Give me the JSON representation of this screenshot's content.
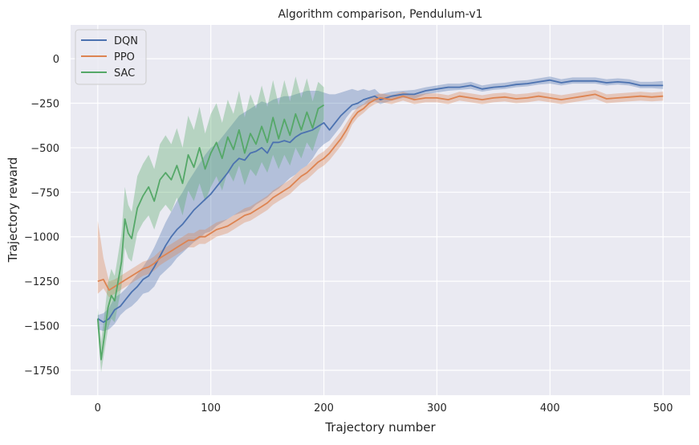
{
  "chart_data": {
    "type": "line",
    "title": "Algorithm comparison, Pendulum-v1",
    "xlabel": "Trajectory number",
    "ylabel": "Trajectory reward",
    "xlim": [
      -24,
      524
    ],
    "ylim": [
      -1890,
      190
    ],
    "xticks": [
      0,
      100,
      200,
      300,
      400,
      500
    ],
    "yticks": [
      0,
      -250,
      -500,
      -750,
      -1000,
      -1250,
      -1500,
      -1750
    ],
    "grid": true,
    "legend_position": "top-left",
    "background": "#eaeaf2",
    "series": [
      {
        "name": "DQN",
        "color": "#4c72b0",
        "band_color": "#4c72b0",
        "x": [
          0,
          5,
          10,
          15,
          20,
          25,
          30,
          35,
          40,
          45,
          50,
          55,
          60,
          65,
          70,
          75,
          80,
          85,
          90,
          95,
          100,
          105,
          110,
          115,
          120,
          125,
          130,
          135,
          140,
          145,
          150,
          155,
          160,
          165,
          170,
          175,
          180,
          185,
          190,
          195,
          200,
          205,
          210,
          215,
          220,
          225,
          230,
          235,
          240,
          245,
          250,
          260,
          270,
          280,
          290,
          300,
          310,
          320,
          330,
          340,
          350,
          360,
          370,
          380,
          390,
          400,
          410,
          420,
          430,
          440,
          450,
          460,
          470,
          480,
          490,
          500
        ],
        "y": [
          -1460,
          -1480,
          -1460,
          -1410,
          -1390,
          -1350,
          -1310,
          -1280,
          -1240,
          -1220,
          -1170,
          -1110,
          -1050,
          -1000,
          -960,
          -930,
          -890,
          -850,
          -820,
          -790,
          -760,
          -720,
          -680,
          -640,
          -590,
          -560,
          -570,
          -530,
          -520,
          -500,
          -530,
          -470,
          -470,
          -460,
          -470,
          -440,
          -420,
          -410,
          -400,
          -380,
          -360,
          -400,
          -360,
          -320,
          -290,
          -260,
          -250,
          -230,
          -220,
          -210,
          -230,
          -210,
          -200,
          -200,
          -180,
          -170,
          -160,
          -160,
          -150,
          -170,
          -160,
          -155,
          -145,
          -140,
          -130,
          -120,
          -135,
          -125,
          -125,
          -125,
          -135,
          -130,
          -135,
          -150,
          -150,
          -150
        ],
        "lower": [
          -1520,
          -1530,
          -1520,
          -1490,
          -1440,
          -1410,
          -1390,
          -1360,
          -1320,
          -1310,
          -1280,
          -1220,
          -1190,
          -1160,
          -1120,
          -1090,
          -1060,
          -1030,
          -1010,
          -980,
          -970,
          -940,
          -920,
          -900,
          -880,
          -870,
          -860,
          -850,
          -820,
          -800,
          -780,
          -750,
          -730,
          -700,
          -670,
          -650,
          -620,
          -600,
          -560,
          -510,
          -480,
          -460,
          -420,
          -380,
          -330,
          -290,
          -280,
          -260,
          -250,
          -240,
          -255,
          -235,
          -220,
          -225,
          -200,
          -190,
          -180,
          -175,
          -170,
          -185,
          -175,
          -170,
          -160,
          -155,
          -145,
          -140,
          -150,
          -140,
          -140,
          -140,
          -150,
          -145,
          -150,
          -165,
          -165,
          -170
        ],
        "upper": [
          -1440,
          -1430,
          -1400,
          -1340,
          -1320,
          -1290,
          -1250,
          -1210,
          -1170,
          -1120,
          -1060,
          -990,
          -920,
          -860,
          -800,
          -750,
          -690,
          -640,
          -590,
          -540,
          -500,
          -480,
          -440,
          -400,
          -360,
          -320,
          -300,
          -280,
          -260,
          -240,
          -250,
          -230,
          -220,
          -210,
          -210,
          -200,
          -190,
          -180,
          -180,
          -180,
          -190,
          -200,
          -200,
          -190,
          -180,
          -170,
          -180,
          -170,
          -180,
          -170,
          -200,
          -185,
          -180,
          -175,
          -160,
          -150,
          -140,
          -140,
          -130,
          -150,
          -140,
          -135,
          -125,
          -120,
          -110,
          -100,
          -115,
          -105,
          -105,
          -105,
          -115,
          -110,
          -115,
          -130,
          -130,
          -125
        ]
      },
      {
        "name": "PPO",
        "color": "#dd8452",
        "band_color": "#dd8452",
        "x": [
          0,
          5,
          10,
          15,
          20,
          25,
          30,
          35,
          40,
          45,
          50,
          55,
          60,
          65,
          70,
          75,
          80,
          85,
          90,
          95,
          100,
          105,
          110,
          115,
          120,
          125,
          130,
          135,
          140,
          145,
          150,
          155,
          160,
          165,
          170,
          175,
          180,
          185,
          190,
          195,
          200,
          205,
          210,
          215,
          220,
          225,
          230,
          235,
          240,
          245,
          250,
          260,
          270,
          280,
          290,
          300,
          310,
          320,
          330,
          340,
          350,
          360,
          370,
          380,
          390,
          400,
          410,
          420,
          430,
          440,
          450,
          460,
          470,
          480,
          490,
          500
        ],
        "y": [
          -1250,
          -1240,
          -1300,
          -1280,
          -1260,
          -1240,
          -1220,
          -1200,
          -1180,
          -1170,
          -1150,
          -1120,
          -1100,
          -1080,
          -1060,
          -1040,
          -1020,
          -1020,
          -1000,
          -1000,
          -980,
          -960,
          -950,
          -940,
          -920,
          -900,
          -880,
          -870,
          -850,
          -830,
          -810,
          -780,
          -760,
          -740,
          -720,
          -690,
          -660,
          -640,
          -610,
          -580,
          -560,
          -530,
          -490,
          -450,
          -400,
          -340,
          -300,
          -280,
          -250,
          -230,
          -220,
          -230,
          -210,
          -230,
          -220,
          -220,
          -230,
          -210,
          -220,
          -230,
          -220,
          -215,
          -225,
          -220,
          -210,
          -220,
          -230,
          -220,
          -210,
          -200,
          -225,
          -220,
          -215,
          -210,
          -215,
          -210
        ],
        "lower": [
          -1320,
          -1290,
          -1340,
          -1320,
          -1300,
          -1280,
          -1260,
          -1240,
          -1220,
          -1210,
          -1190,
          -1160,
          -1140,
          -1120,
          -1100,
          -1080,
          -1060,
          -1060,
          -1040,
          -1040,
          -1020,
          -1000,
          -990,
          -980,
          -960,
          -940,
          -920,
          -910,
          -890,
          -870,
          -850,
          -820,
          -800,
          -780,
          -760,
          -730,
          -700,
          -680,
          -650,
          -620,
          -600,
          -570,
          -530,
          -490,
          -440,
          -370,
          -330,
          -305,
          -275,
          -255,
          -245,
          -255,
          -235,
          -255,
          -245,
          -245,
          -255,
          -235,
          -245,
          -255,
          -245,
          -240,
          -250,
          -245,
          -235,
          -245,
          -255,
          -245,
          -235,
          -225,
          -250,
          -245,
          -240,
          -235,
          -240,
          -235
        ],
        "upper": [
          -910,
          -1120,
          -1250,
          -1240,
          -1220,
          -1200,
          -1180,
          -1160,
          -1140,
          -1130,
          -1110,
          -1080,
          -1060,
          -1040,
          -1020,
          -1000,
          -980,
          -980,
          -960,
          -960,
          -940,
          -920,
          -910,
          -900,
          -880,
          -860,
          -840,
          -830,
          -810,
          -790,
          -770,
          -740,
          -720,
          -700,
          -680,
          -650,
          -620,
          -600,
          -570,
          -540,
          -520,
          -490,
          -450,
          -410,
          -360,
          -310,
          -270,
          -255,
          -225,
          -205,
          -195,
          -205,
          -185,
          -205,
          -195,
          -195,
          -205,
          -185,
          -195,
          -205,
          -195,
          -190,
          -200,
          -195,
          -185,
          -195,
          -205,
          -195,
          -185,
          -175,
          -200,
          -195,
          -190,
          -185,
          -190,
          -185
        ]
      },
      {
        "name": "SAC",
        "color": "#55a868",
        "band_color": "#55a868",
        "x": [
          0,
          3,
          6,
          9,
          12,
          15,
          18,
          21,
          24,
          27,
          30,
          35,
          40,
          45,
          50,
          55,
          60,
          65,
          70,
          75,
          80,
          85,
          90,
          95,
          100,
          105,
          110,
          115,
          120,
          125,
          130,
          135,
          140,
          145,
          150,
          155,
          160,
          165,
          170,
          175,
          180,
          185,
          190,
          195,
          200
        ],
        "y": [
          -1460,
          -1690,
          -1550,
          -1400,
          -1330,
          -1360,
          -1250,
          -1140,
          -900,
          -980,
          -1010,
          -840,
          -770,
          -720,
          -800,
          -680,
          -640,
          -680,
          -600,
          -700,
          -540,
          -610,
          -500,
          -620,
          -530,
          -470,
          -560,
          -440,
          -510,
          -400,
          -530,
          -420,
          -480,
          -380,
          -470,
          -330,
          -450,
          -340,
          -430,
          -310,
          -400,
          -300,
          -390,
          -280,
          -260
        ],
        "lower": [
          -1520,
          -1760,
          -1640,
          -1520,
          -1460,
          -1480,
          -1380,
          -1280,
          -1060,
          -1120,
          -1140,
          -980,
          -920,
          -880,
          -960,
          -860,
          -820,
          -860,
          -780,
          -880,
          -740,
          -800,
          -700,
          -800,
          -720,
          -660,
          -740,
          -630,
          -690,
          -600,
          -710,
          -620,
          -660,
          -580,
          -640,
          -540,
          -620,
          -540,
          -600,
          -500,
          -560,
          -470,
          -520,
          -420,
          -340
        ],
        "upper": [
          -1400,
          -1590,
          -1430,
          -1260,
          -1180,
          -1220,
          -1100,
          -980,
          -720,
          -820,
          -860,
          -660,
          -590,
          -540,
          -620,
          -480,
          -430,
          -480,
          -390,
          -500,
          -320,
          -400,
          -270,
          -420,
          -310,
          -250,
          -360,
          -230,
          -310,
          -180,
          -330,
          -200,
          -280,
          -150,
          -270,
          -120,
          -260,
          -120,
          -240,
          -100,
          -220,
          -110,
          -240,
          -130,
          -160
        ]
      }
    ]
  }
}
